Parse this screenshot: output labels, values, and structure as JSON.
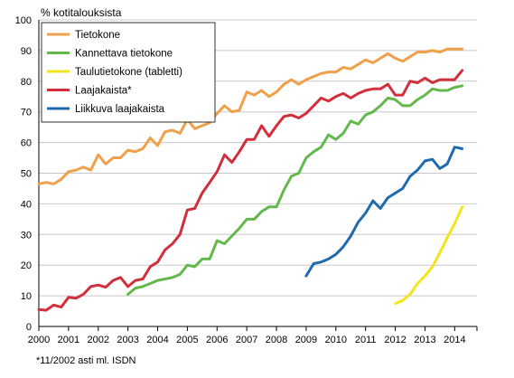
{
  "chart_data": {
    "type": "line",
    "ylabel": "% kotitalouksista",
    "ylim": [
      0,
      100
    ],
    "yticks": [
      0,
      10,
      20,
      30,
      40,
      50,
      60,
      70,
      80,
      90,
      100
    ],
    "xlim": [
      2000,
      2014.75
    ],
    "xticks": [
      "2000",
      "2001",
      "2002",
      "2003",
      "2004",
      "2005",
      "2006",
      "2007",
      "2008",
      "2009",
      "2010",
      "2011",
      "2012",
      "2013",
      "2014"
    ],
    "grid": "horizontal",
    "legend_position": "top-left",
    "footnote": "*11/2002 asti ml. ISDN",
    "series": [
      {
        "name": "Tietokone",
        "color": "#f0a04b",
        "x": [
          2000,
          2000.25,
          2000.5,
          2000.75,
          2001,
          2001.25,
          2001.5,
          2001.75,
          2002,
          2002.25,
          2002.5,
          2002.75,
          2003,
          2003.25,
          2003.5,
          2003.75,
          2004,
          2004.25,
          2004.5,
          2004.75,
          2005,
          2005.25,
          2005.5,
          2005.75,
          2006,
          2006.25,
          2006.5,
          2006.75,
          2007,
          2007.25,
          2007.5,
          2007.75,
          2008,
          2008.25,
          2008.5,
          2008.75,
          2009,
          2009.25,
          2009.5,
          2009.75,
          2010,
          2010.25,
          2010.5,
          2010.75,
          2011,
          2011.25,
          2011.5,
          2011.75,
          2012,
          2012.25,
          2012.5,
          2012.75,
          2013,
          2013.25,
          2013.5,
          2013.75,
          2014,
          2014.25
        ],
        "values": [
          46.5,
          47,
          46.5,
          48,
          50.5,
          51,
          52,
          51,
          56,
          53,
          55,
          55,
          57.5,
          57,
          58,
          61.5,
          59,
          63.5,
          64,
          63,
          67.5,
          64.5,
          65.5,
          66.5,
          69.5,
          72,
          70,
          70.5,
          76.5,
          75.5,
          77,
          75,
          76.5,
          79,
          80.5,
          79,
          80.5,
          81.5,
          82.5,
          83,
          83,
          84.5,
          84,
          85.5,
          87,
          86,
          87.5,
          89,
          87.5,
          86.5,
          88,
          89.5,
          89.5,
          90,
          89.5,
          90.5,
          90.5,
          90.5
        ]
      },
      {
        "name": "Kannettava tietokone",
        "color": "#63b84c",
        "x": [
          2003,
          2003.25,
          2003.5,
          2003.75,
          2004,
          2004.25,
          2004.5,
          2004.75,
          2005,
          2005.25,
          2005.5,
          2005.75,
          2006,
          2006.25,
          2006.5,
          2006.75,
          2007,
          2007.25,
          2007.5,
          2007.75,
          2008,
          2008.25,
          2008.5,
          2008.75,
          2009,
          2009.25,
          2009.5,
          2009.75,
          2010,
          2010.25,
          2010.5,
          2010.75,
          2011,
          2011.25,
          2011.5,
          2011.75,
          2012,
          2012.25,
          2012.5,
          2012.75,
          2013,
          2013.25,
          2013.5,
          2013.75,
          2014,
          2014.25
        ],
        "values": [
          10.5,
          12.5,
          13,
          14,
          15,
          15.5,
          16,
          17,
          20,
          19.5,
          22,
          22,
          28,
          27,
          29.5,
          32,
          35,
          35,
          37.5,
          39,
          39,
          44.5,
          49,
          50,
          55,
          57,
          58.5,
          62.5,
          61,
          63,
          67,
          66,
          69,
          70,
          72,
          74.5,
          74,
          72,
          72,
          74,
          75.5,
          77.5,
          77,
          77,
          78,
          78.5
        ]
      },
      {
        "name": "Taulutietokone (tabletti)",
        "color": "#f2e51b",
        "x": [
          2012,
          2012.25,
          2012.5,
          2012.75,
          2013,
          2013.25,
          2013.5,
          2013.75,
          2014,
          2014.25
        ],
        "values": [
          7.5,
          8.5,
          10.5,
          14,
          16.5,
          19.5,
          24,
          29,
          33.5,
          39
        ]
      },
      {
        "name": "Laajakaista*",
        "color": "#d22f3c",
        "x": [
          2000,
          2000.25,
          2000.5,
          2000.75,
          2001,
          2001.25,
          2001.5,
          2001.75,
          2002,
          2002.25,
          2002.5,
          2002.75,
          2003,
          2003.25,
          2003.5,
          2003.75,
          2004,
          2004.25,
          2004.5,
          2004.75,
          2005,
          2005.25,
          2005.5,
          2005.75,
          2006,
          2006.25,
          2006.5,
          2006.75,
          2007,
          2007.25,
          2007.5,
          2007.75,
          2008,
          2008.25,
          2008.5,
          2008.75,
          2009,
          2009.25,
          2009.5,
          2009.75,
          2010,
          2010.25,
          2010.5,
          2010.75,
          2011,
          2011.25,
          2011.5,
          2011.75,
          2012,
          2012.25,
          2012.5,
          2012.75,
          2013,
          2013.25,
          2013.5,
          2013.75,
          2014,
          2014.25
        ],
        "values": [
          5.5,
          5.3,
          7,
          6.3,
          9.5,
          9.2,
          10.5,
          13,
          13.5,
          12.8,
          15,
          16,
          13,
          15,
          15.5,
          19.5,
          21,
          25,
          27,
          30,
          38,
          38.5,
          43.5,
          47,
          50.5,
          56,
          53.5,
          57,
          61,
          61,
          65.5,
          62,
          65.5,
          68.5,
          69,
          68,
          69.5,
          72,
          74.5,
          73.5,
          75,
          76,
          74.5,
          76,
          77,
          77.5,
          77.5,
          79,
          75.5,
          75.5,
          80,
          79.5,
          81,
          79.5,
          80.5,
          80.5,
          80.5,
          83.5
        ]
      },
      {
        "name": "Liikkuva laajakaista",
        "color": "#1f6aad",
        "x": [
          2009,
          2009.25,
          2009.5,
          2009.75,
          2010,
          2010.25,
          2010.5,
          2010.75,
          2011,
          2011.25,
          2011.5,
          2011.75,
          2012,
          2012.25,
          2012.5,
          2012.75,
          2013,
          2013.25,
          2013.5,
          2013.75,
          2014,
          2014.25
        ],
        "values": [
          16.5,
          20.5,
          21,
          22,
          23.5,
          26,
          29.5,
          34,
          37,
          41,
          38.5,
          42,
          43.5,
          45,
          49,
          51,
          54,
          54.5,
          51.5,
          53,
          58.5,
          58
        ]
      }
    ]
  }
}
